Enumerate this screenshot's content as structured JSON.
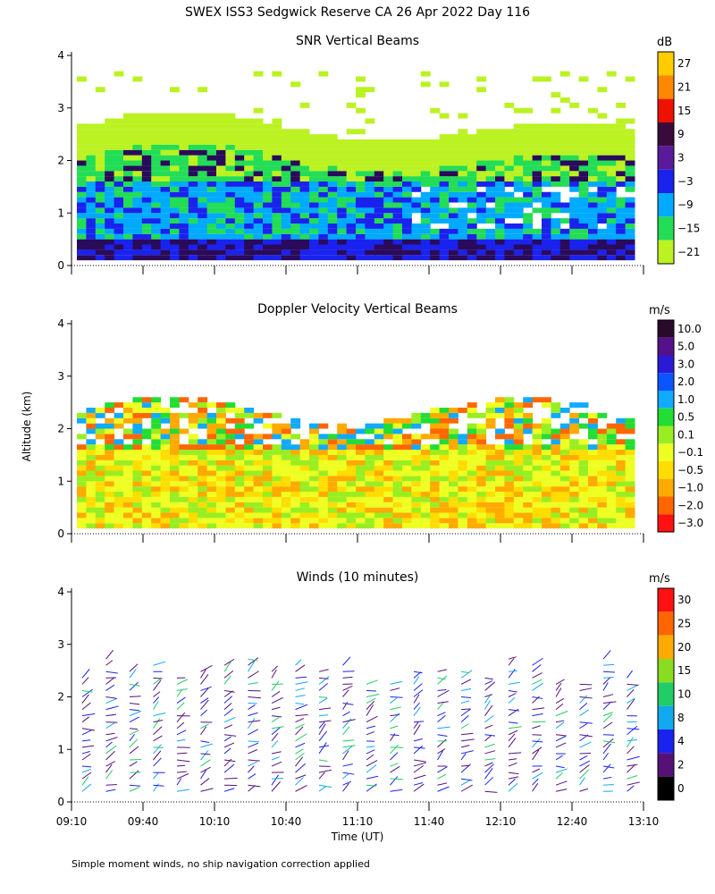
{
  "page_title": "SWEX ISS3 Sedgwick Reserve CA  26 Apr 2022 Day 116",
  "y_axis_label": "Altitude (km)",
  "x_axis_label": "Time (UT)",
  "footnote": "Simple moment winds, no ship navigation correction applied",
  "chart_data": [
    {
      "type": "heatmap",
      "title": "SNR Vertical Beams",
      "x_ticks": [
        "09:10",
        "09:40",
        "10:10",
        "10:40",
        "11:10",
        "11:40",
        "12:10",
        "12:40",
        "13:10"
      ],
      "y_ticks": [
        "0",
        "1",
        "2",
        "3",
        "4"
      ],
      "ylim": [
        0,
        4
      ],
      "colorbar": {
        "unit": "dB",
        "labels": [
          "27",
          "21",
          "15",
          "9",
          "3",
          "−3",
          "−9",
          "−15",
          "−21"
        ],
        "colors": [
          "#ffcc00",
          "#ff8800",
          "#ee1100",
          "#3a0a3a",
          "#5a1a9a",
          "#1a22ee",
          "#00aaff",
          "#22dd55",
          "#bbf222"
        ]
      }
    },
    {
      "type": "heatmap",
      "title": "Doppler Velocity Vertical Beams",
      "x_ticks": [
        "09:10",
        "09:40",
        "10:10",
        "10:40",
        "11:10",
        "11:40",
        "12:10",
        "12:40",
        "13:10"
      ],
      "y_ticks": [
        "0",
        "1",
        "2",
        "3",
        "4"
      ],
      "ylim": [
        0,
        4
      ],
      "colorbar": {
        "unit": "m/s",
        "labels": [
          "10.0",
          "5.0",
          "3.0",
          "2.0",
          "1.0",
          "0.5",
          "0.1",
          "−0.1",
          "−0.5",
          "−1.0",
          "−2.0",
          "−3.0"
        ],
        "colors": [
          "#2a0a2a",
          "#55118a",
          "#2a1ad8",
          "#0a55ff",
          "#11aaff",
          "#22dd33",
          "#99ee22",
          "#eeff22",
          "#ffdd00",
          "#ffaa00",
          "#ff6600",
          "#ff1111"
        ]
      }
    },
    {
      "type": "scatter",
      "title": "Winds (10 minutes)",
      "x_ticks": [
        "09:10",
        "09:40",
        "10:10",
        "10:40",
        "11:10",
        "11:40",
        "12:10",
        "12:40",
        "13:10"
      ],
      "y_ticks": [
        "0",
        "1",
        "2",
        "3",
        "4"
      ],
      "ylim": [
        0,
        4
      ],
      "colorbar": {
        "unit": "m/s",
        "labels": [
          "30",
          "25",
          "20",
          "15",
          "10",
          "8",
          "4",
          "2",
          "0"
        ],
        "colors": [
          "#ff1111",
          "#ff6600",
          "#ffaa00",
          "#88dd22",
          "#22cc66",
          "#11aaee",
          "#1a22ee",
          "#551177",
          "#000000"
        ]
      }
    }
  ]
}
